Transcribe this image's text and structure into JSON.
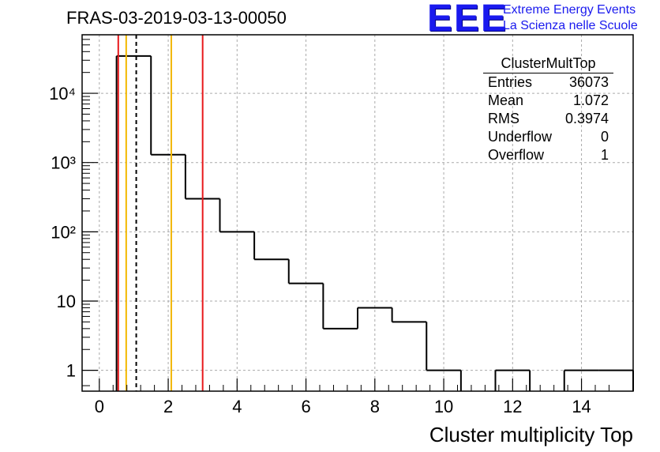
{
  "chart_data": {
    "type": "histogram",
    "title": "FRAS-03-2019-03-13-00050",
    "xlabel": "Cluster multiplicity Top",
    "ylabel": "",
    "xlim": [
      -0.5,
      15.5
    ],
    "ylim": [
      0.5,
      70000
    ],
    "yscale": "log",
    "grid": true,
    "x_ticks": [
      0,
      2,
      4,
      6,
      8,
      10,
      12,
      14
    ],
    "x_tick_labels": [
      "0",
      "2",
      "4",
      "6",
      "8",
      "10",
      "12",
      "14"
    ],
    "y_ticks": [
      1,
      10,
      100,
      1000,
      10000
    ],
    "y_tick_labels": [
      "1",
      "10",
      "10²",
      "10³",
      "10⁴"
    ],
    "bins": {
      "edges": [
        0.5,
        1.5,
        2.5,
        3.5,
        4.5,
        5.5,
        6.5,
        7.5,
        8.5,
        9.5,
        10.5,
        11.5,
        12.5,
        13.5,
        14.5,
        15.5
      ],
      "counts": [
        34500,
        1300,
        300,
        100,
        40,
        18,
        4,
        8,
        5,
        1,
        0,
        1,
        0,
        1,
        1
      ]
    },
    "reference_lines": [
      {
        "x": 0.55,
        "color": "#e8191c",
        "style": "solid"
      },
      {
        "x": 0.78,
        "color": "#f2b800",
        "style": "solid"
      },
      {
        "x": 1.072,
        "color": "#000000",
        "style": "dashed"
      },
      {
        "x": 2.09,
        "color": "#f2b800",
        "style": "solid"
      },
      {
        "x": 3.0,
        "color": "#e8191c",
        "style": "solid"
      }
    ],
    "stats": {
      "name": "ClusterMultTop",
      "rows": [
        {
          "label": "Entries",
          "value": "36073"
        },
        {
          "label": "Mean",
          "value": "1.072"
        },
        {
          "label": "RMS",
          "value": "0.3974"
        },
        {
          "label": "Underflow",
          "value": "0"
        },
        {
          "label": "Overflow",
          "value": "1"
        }
      ]
    }
  },
  "logo": {
    "mark": "EEE",
    "line1": "Extreme Energy Events",
    "line2": "La Scienza nelle Scuole",
    "color": "#1a1aee"
  }
}
